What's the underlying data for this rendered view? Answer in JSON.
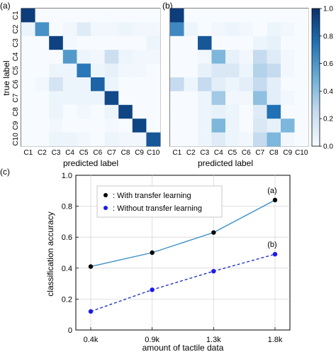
{
  "panel_labels": [
    "(a)",
    "(b)",
    "(c)"
  ],
  "chart_data": [
    {
      "type": "heatmap",
      "panel": "(a)",
      "xlabel": "predicted label",
      "ylabel": "true label",
      "categories": [
        "C1",
        "C2",
        "C3",
        "C4",
        "C5",
        "C6",
        "C7",
        "C8",
        "C9",
        "C10"
      ],
      "values": [
        [
          0.95,
          0.0,
          0.0,
          0.0,
          0.0,
          0.0,
          0.0,
          0.0,
          0.0,
          0.0
        ],
        [
          0.06,
          0.62,
          0.0,
          0.03,
          0.12,
          0.03,
          0.03,
          0.05,
          0.03,
          0.03
        ],
        [
          0.0,
          0.0,
          0.93,
          0.02,
          0.0,
          0.0,
          0.0,
          0.0,
          0.0,
          0.05
        ],
        [
          0.0,
          0.0,
          0.0,
          0.58,
          0.05,
          0.03,
          0.22,
          0.05,
          0.03,
          0.03
        ],
        [
          0.0,
          0.0,
          0.05,
          0.05,
          0.72,
          0.05,
          0.08,
          0.03,
          0.03,
          0.0
        ],
        [
          0.0,
          0.03,
          0.18,
          0.05,
          0.05,
          0.8,
          0.05,
          0.0,
          0.0,
          0.0
        ],
        [
          0.0,
          0.0,
          0.05,
          0.05,
          0.05,
          0.05,
          0.9,
          0.0,
          0.0,
          0.0
        ],
        [
          0.0,
          0.0,
          0.05,
          0.0,
          0.03,
          0.0,
          0.05,
          0.92,
          0.0,
          0.0
        ],
        [
          0.0,
          0.0,
          0.03,
          0.0,
          0.0,
          0.0,
          0.02,
          0.0,
          0.92,
          0.0
        ],
        [
          0.0,
          0.0,
          0.05,
          0.05,
          0.03,
          0.0,
          0.05,
          0.03,
          0.03,
          0.85
        ]
      ]
    },
    {
      "type": "heatmap",
      "panel": "(b)",
      "xlabel": "predicted label",
      "categories": [
        "C1",
        "C2",
        "C3",
        "C4",
        "C5",
        "C6",
        "C7",
        "C8",
        "C9",
        "C10"
      ],
      "values": [
        [
          0.95,
          0.0,
          0.0,
          0.0,
          0.0,
          0.0,
          0.0,
          0.0,
          0.0,
          0.0
        ],
        [
          0.65,
          0.05,
          0.0,
          0.03,
          0.05,
          0.03,
          0.0,
          0.05,
          0.03,
          0.0
        ],
        [
          0.0,
          0.0,
          0.85,
          0.0,
          0.0,
          0.0,
          0.05,
          0.08,
          0.0,
          0.0
        ],
        [
          0.0,
          0.0,
          0.03,
          0.45,
          0.08,
          0.03,
          0.25,
          0.12,
          0.03,
          0.0
        ],
        [
          0.0,
          0.0,
          0.08,
          0.15,
          0.15,
          0.05,
          0.3,
          0.25,
          0.03,
          0.0
        ],
        [
          0.25,
          0.05,
          0.25,
          0.1,
          0.05,
          0.1,
          0.25,
          0.1,
          0.0,
          0.0
        ],
        [
          0.0,
          0.0,
          0.05,
          0.35,
          0.03,
          0.03,
          0.4,
          0.1,
          0.03,
          0.0
        ],
        [
          0.0,
          0.0,
          0.05,
          0.08,
          0.05,
          0.0,
          0.12,
          0.75,
          0.0,
          0.0
        ],
        [
          0.0,
          0.0,
          0.05,
          0.45,
          0.05,
          0.0,
          0.15,
          0.08,
          0.45,
          0.0
        ],
        [
          0.0,
          0.0,
          0.05,
          0.12,
          0.05,
          0.03,
          0.25,
          0.45,
          0.03,
          0.0
        ]
      ]
    },
    {
      "type": "colorbar",
      "range": [
        0,
        1
      ],
      "ticks": [
        "0.0",
        "0.2",
        "0.4",
        "0.6",
        "0.8",
        "1.0"
      ],
      "tick_values": [
        0,
        0.2,
        0.4,
        0.6,
        0.8,
        1.0
      ],
      "colors": [
        "#f7fbff",
        "#c6dbef",
        "#6baed6",
        "#2171b5",
        "#08306b"
      ]
    },
    {
      "type": "line",
      "panel": "(c)",
      "xlabel": "amount of tactile data",
      "ylabel": "classification accuracy",
      "categories": [
        "0.4k",
        "0.9k",
        "1.3k",
        "1.8k"
      ],
      "ylim": [
        0,
        1.0
      ],
      "yticks": [
        "0",
        "0.2",
        "0.4",
        "0.6",
        "0.8",
        "1.0"
      ],
      "ytick_values": [
        0,
        0.2,
        0.4,
        0.6,
        0.8,
        1.0
      ],
      "grid": true,
      "legend_position": "top-left",
      "series": [
        {
          "name": ": With transfer learning",
          "values": [
            0.41,
            0.5,
            0.63,
            0.84
          ],
          "line_color": "#3a8fc5",
          "marker_color": "#000000",
          "dash": false,
          "annotation": "(a)"
        },
        {
          "name": ": Without transfer learning",
          "values": [
            0.12,
            0.26,
            0.38,
            0.49
          ],
          "line_color": "#2233cc",
          "marker_color": "#1a1aee",
          "dash": true,
          "annotation": "(b)"
        }
      ]
    }
  ]
}
